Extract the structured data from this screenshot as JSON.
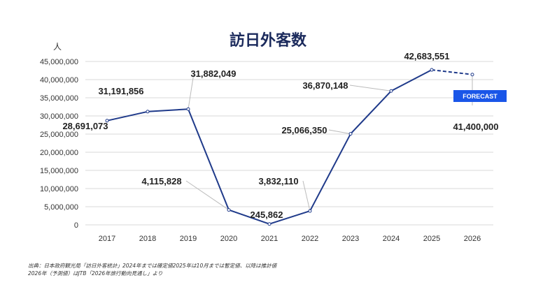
{
  "title": "訪日外客数",
  "unit": "人",
  "source_lines": [
    "出典：日本政府観光局「訪日外客統計」2024年までは確定値2025年は10月までは暫定値、以降は推計値",
    "2026年（予測値）はJTB「2026年旅行動向見通し」より"
  ],
  "chart_data": {
    "type": "line",
    "title": "訪日外客数",
    "ylabel": "人",
    "xlabel": "",
    "ylim": [
      0,
      45000000
    ],
    "yticks": [
      0,
      5000000,
      10000000,
      15000000,
      20000000,
      25000000,
      30000000,
      35000000,
      40000000,
      45000000
    ],
    "ytick_labels": [
      "0",
      "5,000,000",
      "10,000,000",
      "15,000,000",
      "20,000,000",
      "25,000,000",
      "30,000,000",
      "35,000,000",
      "40,000,000",
      "45,000,000"
    ],
    "categories": [
      "2017",
      "2018",
      "2019",
      "2020",
      "2021",
      "2022",
      "2023",
      "2024",
      "2025",
      "2026"
    ],
    "series": [
      {
        "name": "訪日外客数",
        "values": [
          28691073,
          31191856,
          31882049,
          4115828,
          245862,
          3832110,
          25066350,
          36870148,
          42683551,
          41400000
        ]
      }
    ],
    "data_labels": [
      "28,691,073",
      "31,191,856",
      "31,882,049",
      "4,115,828",
      "245,862",
      "3,832,110",
      "25,066,350",
      "36,870,148",
      "42,683,551",
      "41,400,000"
    ],
    "forecast_from_index": 8,
    "annotation": "FORECAST",
    "grid": true,
    "colors": {
      "line": "#1f3a8a",
      "badge": "#1a56e8",
      "grid": "#d9d9d9"
    }
  }
}
